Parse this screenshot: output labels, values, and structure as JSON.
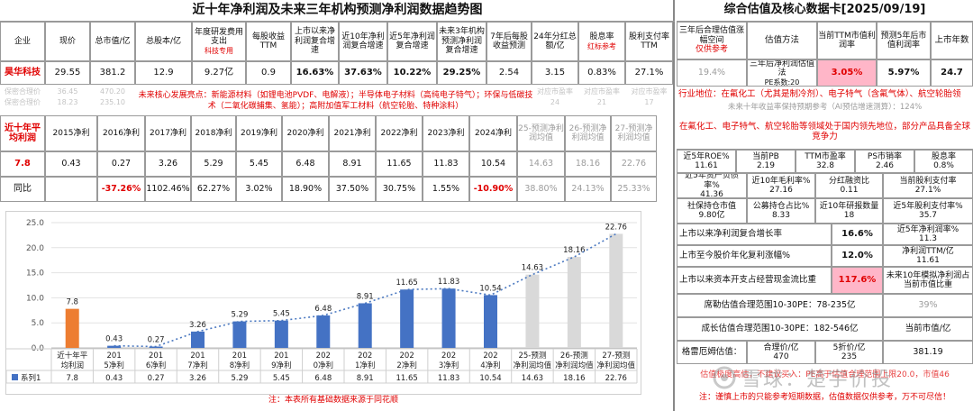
{
  "left": {
    "title": "近十年净利润及未来三年机构预测净利润数据趋势图",
    "headers": [
      "企业",
      "现价",
      "总市值/亿",
      "总股本/亿",
      "年度研发费用支出",
      "每股收益TTM",
      "上市以来净利润复合增速",
      "近10年净利润复合增速",
      "近5年净利润复合增速",
      "未来3年机构预测净利润复合增速",
      "7年后每股收益预测",
      "24年分红总额/亿",
      "股息率",
      "股利支付率TTM"
    ],
    "rd_sub": "科技专用",
    "dy_sub": "红标参考",
    "company": "昊华科技",
    "row": [
      "29.55",
      "381.2",
      "12.9",
      "9.27亿",
      "0.9",
      "16.63%",
      "37.63%",
      "10.22%",
      "29.25%",
      "2.54",
      "3.15",
      "0.83%",
      "27.1%"
    ],
    "hidden1": [
      "36.45",
      "470.20",
      "",
      "",
      "",
      "",
      "",
      "",
      "",
      "对应市盈率",
      "对应市盈率",
      "对应市盈率"
    ],
    "hidden2": [
      "18.23",
      "235.10",
      "",
      "",
      "",
      "",
      "",
      "",
      "",
      "24",
      "21",
      "17"
    ],
    "hidden_l1": "保密合理价",
    "hidden_l2": "保密合理价",
    "highlight": "未来核心发展亮点：新能源材料（如锂电池PVDF、电解液）；半导体电子材料（高纯电子特气）；环保与低碳技术（二氧化碳捕集、氢能）；高附加值军工材料（航空轮胎、特种涂料）",
    "np_label": "近十年平均利润",
    "np_headers": [
      "2015净利",
      "2016净利",
      "2017净利",
      "2018净利",
      "2019净利",
      "2020净利",
      "2021净利",
      "2022净利",
      "2023净利",
      "2024净利",
      "25-预测净利润均值",
      "26-预测净利润均值",
      "27-预测净利润均值"
    ],
    "np_avg": "7.8",
    "np_values": [
      "0.43",
      "0.27",
      "3.26",
      "5.29",
      "5.45",
      "6.48",
      "8.91",
      "11.65",
      "11.83",
      "10.54",
      "14.63",
      "18.16",
      "22.76"
    ],
    "yoy_label": "同比",
    "yoy_values": [
      "",
      "-37.26%",
      "1102.46%",
      "62.27%",
      "3.02%",
      "18.90%",
      "37.50%",
      "30.75%",
      "1.55%",
      "-10.90%",
      "38.80%",
      "24.13%",
      "25.33%"
    ],
    "note": "注：本表所有基础数据来源于同花顺"
  },
  "chart_data": {
    "type": "bar",
    "categories": [
      "近十年平均利润",
      "2015净利",
      "2016净利",
      "2017净利",
      "2018净利",
      "2019净利",
      "2020净利",
      "2021净利",
      "2022净利",
      "2023净利",
      "2024净利",
      "25-预测净利润均值",
      "26-预测净利润均值",
      "27-预测净利润均值"
    ],
    "series": [
      {
        "name": "系列1",
        "values": [
          7.8,
          0.43,
          0.27,
          3.26,
          5.29,
          5.45,
          6.48,
          8.91,
          11.65,
          11.83,
          10.54,
          14.63,
          18.16,
          22.76
        ]
      }
    ],
    "value_labels": [
      "7.8",
      "0.43",
      "0.27",
      "3.26",
      "5.29",
      "5.45",
      "6.48",
      "8.91",
      "11.65",
      "11.83",
      "10.54",
      "14.63",
      "18.16",
      "22.76"
    ],
    "bar_kinds": [
      "avg",
      "hist",
      "hist",
      "hist",
      "hist",
      "hist",
      "hist",
      "hist",
      "hist",
      "hist",
      "hist",
      "forecast",
      "forecast",
      "forecast"
    ],
    "colors": {
      "avg": "#ed7d31",
      "hist": "#4472c4",
      "forecast": "#d9d9d9",
      "trend": "#4a78c0"
    },
    "trendline": "dotted",
    "yticks": [
      "0.0",
      "5.0",
      "10.0",
      "15.0",
      "20.0",
      "25.0"
    ],
    "ylim": [
      0,
      25
    ],
    "grid": true,
    "legend_position": "bottom-left-table"
  },
  "right": {
    "title": "综合估值及核心数据卡[2025/09/19]",
    "h1": "三年后合理估值涨幅空间",
    "h1_sub": "仅供参考",
    "h2": "估值方法",
    "h3": "当前TTM市值利润率",
    "h4": "预测5年后市值利润率",
    "h5": "上市年数",
    "r1_v1": "19.4%",
    "r1_method": "三年后净利润估值法",
    "pe_factor": "PE系数:20",
    "r1_v3": "3.05%",
    "r1_v4": "5.97%",
    "r1_v5": "24.7",
    "industry": "行业地位：在氟化工（尤其是制冷剂）、电子特气（含氟气体）、航空轮胎领",
    "gray_line": "未来十年收益率保持预期参考（AI预估增速测算）：124%",
    "red_lines": "在氟化工、电子特气、航空轮胎等领域处于国内领先地位，部分产品具备全球竞争力",
    "kv": [
      [
        "近5年ROE%",
        "11.61",
        "当前PB",
        "2.19",
        "TTM市盈率",
        "32.8",
        "PS市销率",
        "2.46",
        "股息率",
        "0.8%"
      ],
      [
        "近5年资产负债率%",
        "41.36",
        "近10年毛利率%",
        "27.16",
        "分红融资比",
        "0.11",
        "当前股利支付率",
        "27.1%"
      ],
      [
        "社保持仓市值",
        "9.80亿",
        "公募持仓占比%",
        "8.33",
        "近10年研报数量",
        "18",
        "近5年股利支付率%",
        "35.7"
      ]
    ],
    "s1_label": "上市以来净利润复合增长率",
    "s1_val": "16.6%",
    "s1_r_label": "近5年净利润率%",
    "s1_r_val": "11.3",
    "s2_label": "上市至今股价年化复利涨幅%",
    "s2_val": "12.0%",
    "s2_r_label": "净利润TTM/亿",
    "s2_r_val": "11.61",
    "s3_label": "上市以来资本开支占经营现金流比重",
    "s3_val": "117.6%",
    "s3_r_label": "未来10年模拟净利润占当前市值比重",
    "s3_r_val": "39%",
    "range1": "席勒估值合理范围10-30PE：78-235亿",
    "range2": "成长估值合理范围10-30PE：182-546亿",
    "range_r_label": "当前市值/亿",
    "range_r_val": "381.19",
    "graham_label": "格雷厄姆估值：",
    "fair_label": "合理价/亿",
    "fair_val": "470",
    "half_label": "5折价/亿",
    "half_val": "235",
    "hidden_red": "估值极度高估，不建议买入：PE高于估值合理范围上限20.0，市值46",
    "footer": "注：谨慎上市的只能参考短期数据，估值数据仅供参考，万不可尽信！",
    "watermark": "雪球：楚宇价投"
  }
}
